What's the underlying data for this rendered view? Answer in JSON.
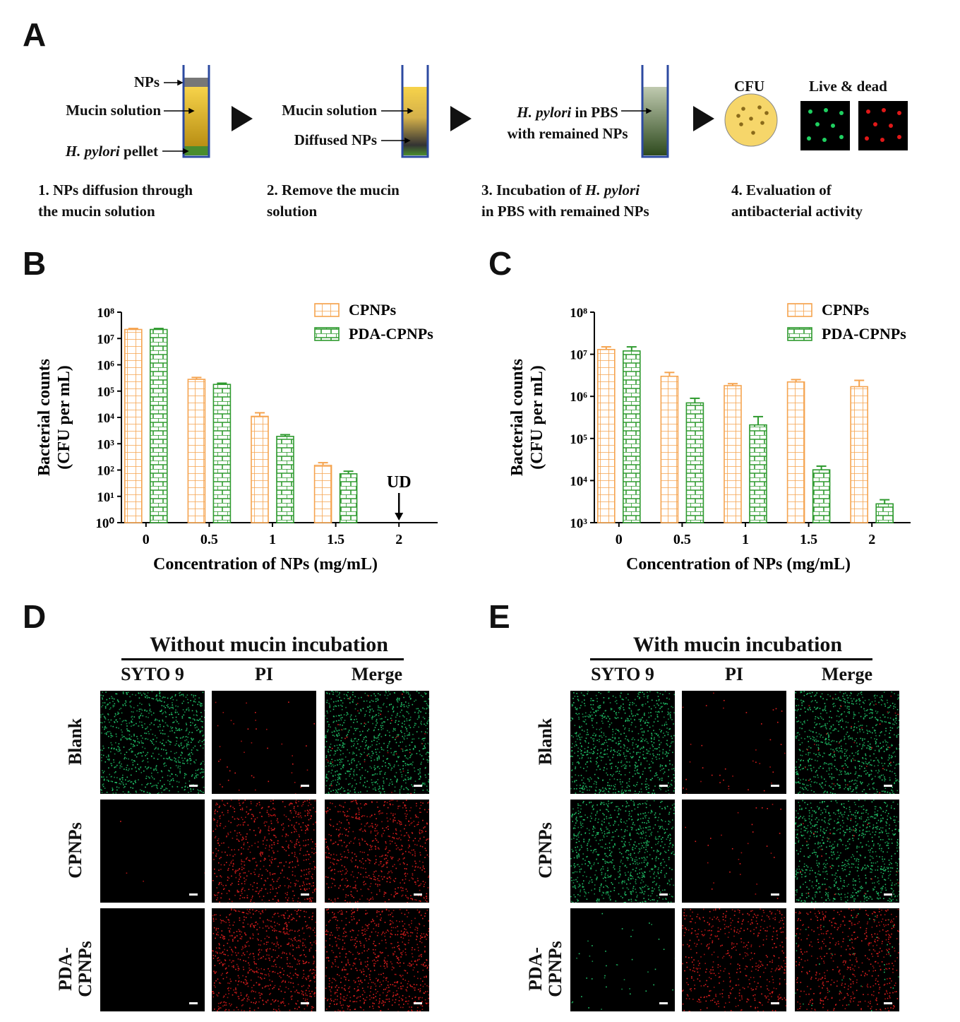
{
  "panel_labels": {
    "a": "A",
    "b": "B",
    "c": "C",
    "d": "D",
    "e": "E"
  },
  "colors": {
    "cpnps": "#f5a34e",
    "pda_cpnps": "#2e9a2e",
    "tube_border": "#2c4aa0",
    "mucin": "#f2cc3c",
    "pellet": "#4a8c2e",
    "np_layer": "#777777",
    "plate": "#f6d66a",
    "dot_live": "#1fd060",
    "dot_dead": "#e01818"
  },
  "schema": {
    "tube1": {
      "np_label": "NPs",
      "mucin_label": "Mucin solution",
      "pellet_italic": "H. pylori",
      "pellet_rest": " pellet"
    },
    "tube2": {
      "mucin_label": "Mucin solution",
      "diffused_label": "Diffused NPs"
    },
    "tube3": {
      "line1_italic": "H. pylori",
      "line1_rest": " in PBS",
      "line2": "with remained NPs"
    },
    "cfu_label": "CFU",
    "live_dead_label": "Live & dead",
    "steps": [
      {
        "line1": "1. NPs diffusion through",
        "line2": "the mucin solution"
      },
      {
        "line1": "2. Remove the mucin",
        "line2": "solution"
      },
      {
        "line1_pre": "3. Incubation of ",
        "line1_italic": "H. pylori",
        "line2": "in PBS with remained NPs"
      },
      {
        "line1": "4. Evaluation of",
        "line2": "antibacterial activity"
      }
    ]
  },
  "chart_data": [
    {
      "panel": "B",
      "type": "bar",
      "log_scale": true,
      "ylim": [
        1,
        100000000
      ],
      "yticks": [
        "10⁰",
        "10¹",
        "10²",
        "10³",
        "10⁴",
        "10⁵",
        "10⁶",
        "10⁷",
        "10⁸"
      ],
      "ylabel_line1": "Bacterial counts",
      "ylabel_line2": "(CFU per mL)",
      "xlabel": "Concentration of NPs (mg/mL)",
      "categories": [
        "0",
        "0.5",
        "1",
        "1.5",
        "2"
      ],
      "series": [
        {
          "name": "CPNPs",
          "values": [
            22000000,
            280000,
            11000,
            150,
            null
          ],
          "errors": [
            24000000,
            330000,
            15000,
            190,
            null
          ]
        },
        {
          "name": "PDA-CPNPs",
          "values": [
            22000000,
            180000,
            1900,
            72,
            null
          ],
          "errors": [
            24000000,
            200000,
            2200,
            90,
            null
          ]
        }
      ],
      "annotation": "UD",
      "annotation_category": "2",
      "legend_position": "top-right"
    },
    {
      "panel": "C",
      "type": "bar",
      "log_scale": true,
      "ylim": [
        1000,
        100000000
      ],
      "yticks": [
        "10³",
        "10⁴",
        "10⁵",
        "10⁶",
        "10⁷",
        "10⁸"
      ],
      "ylabel_line1": "Bacterial counts",
      "ylabel_line2": "(CFU per mL)",
      "xlabel": "Concentration of NPs (mg/mL)",
      "categories": [
        "0",
        "0.5",
        "1",
        "1.5",
        "2"
      ],
      "series": [
        {
          "name": "CPNPs",
          "values": [
            13000000,
            3000000,
            1800000,
            2200000,
            1700000
          ],
          "errors": [
            15000000,
            3700000,
            2000000,
            2500000,
            2400000
          ]
        },
        {
          "name": "PDA-CPNPs",
          "values": [
            12000000,
            700000,
            210000,
            18000,
            2800
          ],
          "errors": [
            15000000,
            900000,
            330000,
            22000,
            3500
          ]
        }
      ],
      "legend_position": "top-right"
    }
  ],
  "panel_d": {
    "title": "Without mucin incubation",
    "columns": [
      "SYTO 9",
      "PI",
      "Merge"
    ],
    "rows": [
      "Blank",
      "CPNPs",
      "PDA-\nCPNPs"
    ]
  },
  "panel_e": {
    "title": "With mucin incubation",
    "columns": [
      "SYTO 9",
      "PI",
      "Merge"
    ],
    "rows": [
      "Blank",
      "CPNPs",
      "PDA-\nCPNPs"
    ]
  }
}
